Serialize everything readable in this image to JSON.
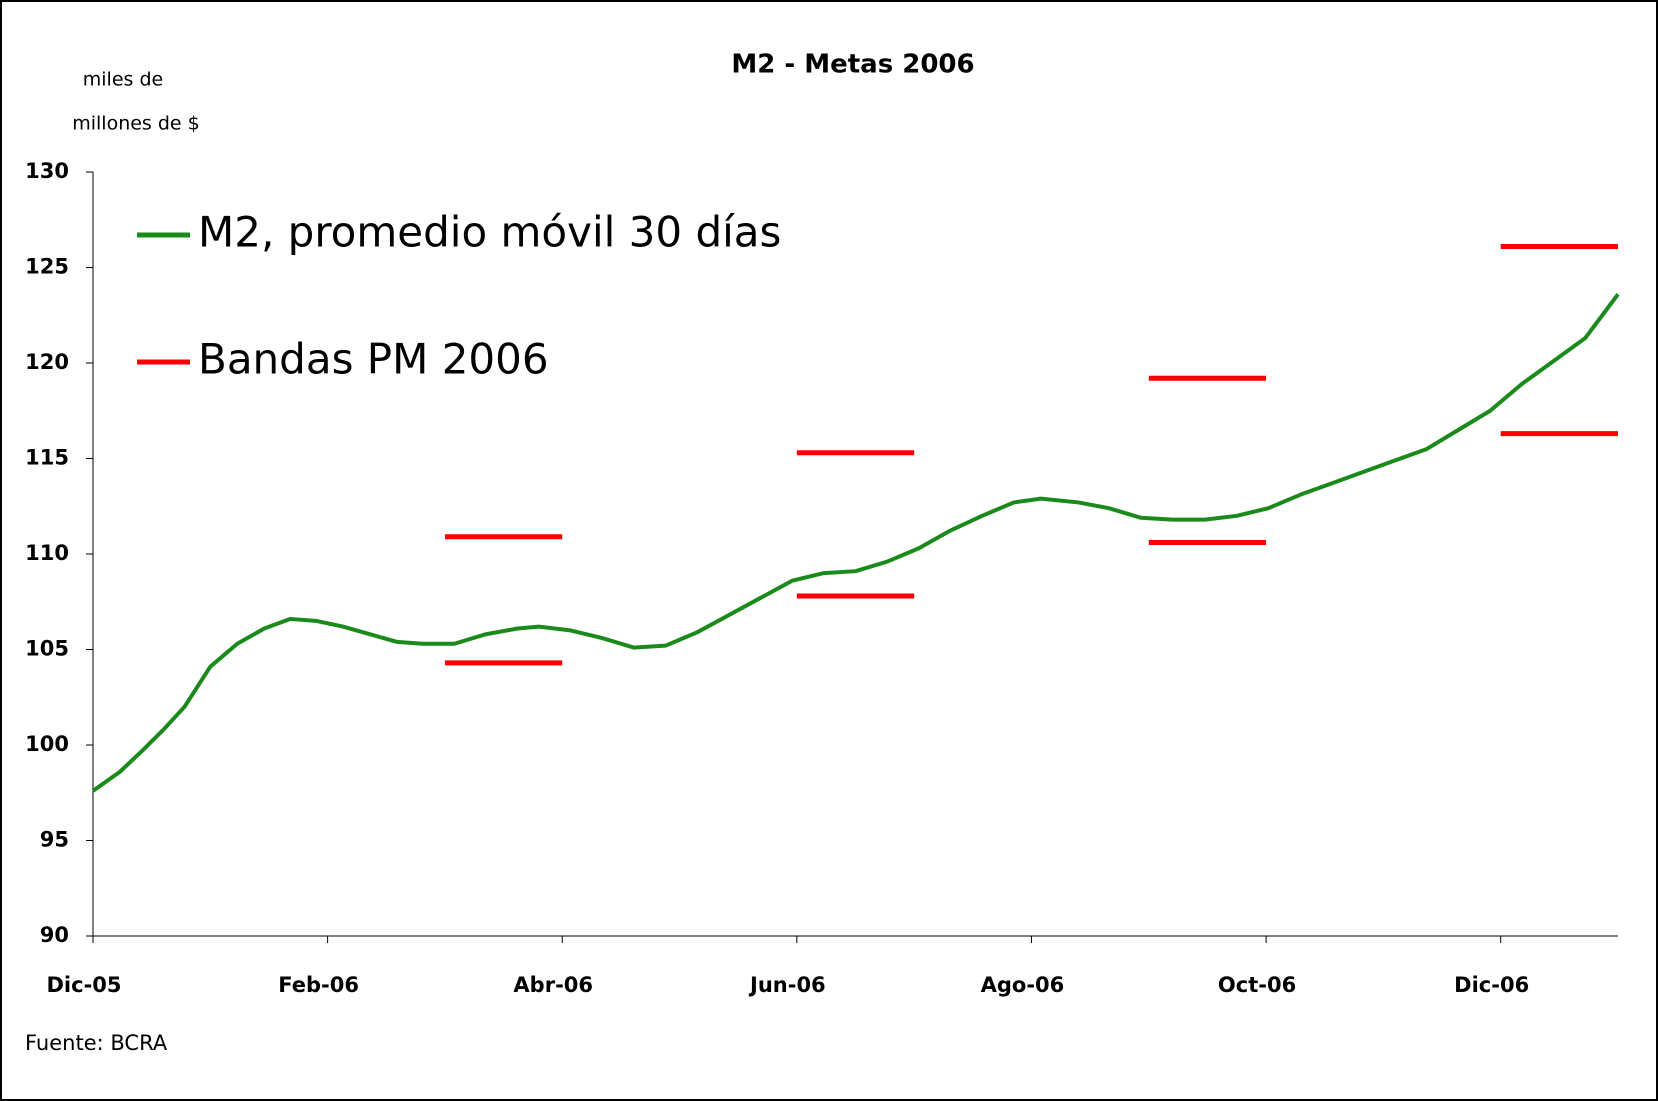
{
  "chart_data": {
    "type": "line",
    "title": "M2 - Metas 2006",
    "y_label": [
      "miles de",
      "millones de $"
    ],
    "source": "Fuente: BCRA",
    "xlim": [
      0,
      13
    ],
    "xticks": [
      {
        "value": 0,
        "label": "Dic-05"
      },
      {
        "value": 2,
        "label": "Feb-06"
      },
      {
        "value": 4,
        "label": "Abr-06"
      },
      {
        "value": 6,
        "label": "Jun-06"
      },
      {
        "value": 8,
        "label": "Ago-06"
      },
      {
        "value": 10,
        "label": "Oct-06"
      },
      {
        "value": 12,
        "label": "Dic-06"
      }
    ],
    "ylim": [
      90,
      130
    ],
    "yticks": [
      90,
      95,
      100,
      105,
      110,
      115,
      120,
      125,
      130
    ],
    "series": [
      {
        "name": "M2, promedio móvil 30 días",
        "color": "#1a8a1a",
        "x": [
          0,
          0.23,
          0.42,
          0.6,
          0.78,
          1.0,
          1.23,
          1.46,
          1.68,
          1.9,
          2.13,
          2.36,
          2.59,
          2.81,
          3.08,
          3.35,
          3.62,
          3.8,
          4.07,
          4.34,
          4.61,
          4.88,
          5.15,
          5.42,
          5.69,
          5.96,
          6.23,
          6.5,
          6.77,
          7.04,
          7.3,
          7.58,
          7.85,
          8.08,
          8.4,
          8.66,
          8.93,
          9.2,
          9.48,
          9.75,
          10.02,
          10.29,
          10.56,
          10.83,
          11.1,
          11.37,
          11.64,
          11.91,
          12.18,
          12.45,
          12.72,
          13
        ],
        "values": [
          97.6,
          98.6,
          99.7,
          100.8,
          102,
          104.1,
          105.3,
          106.1,
          106.6,
          106.5,
          106.2,
          105.8,
          105.4,
          105.3,
          105.3,
          105.8,
          106.1,
          106.2,
          106.0,
          105.6,
          105.1,
          105.2,
          105.9,
          106.8,
          107.7,
          108.6,
          109.0,
          109.1,
          109.6,
          110.3,
          111.2,
          112.0,
          112.7,
          112.9,
          112.7,
          112.4,
          111.9,
          111.8,
          111.8,
          112.0,
          112.4,
          113.1,
          113.7,
          114.3,
          114.9,
          115.5,
          116.5,
          117.5,
          118.9,
          120.1,
          121.3,
          123.6
        ]
      },
      {
        "name": "Bandas PM 2006",
        "color": "#ff0000",
        "segments": [
          {
            "x": [
              3,
              4
            ],
            "lower": 104.3,
            "upper": 110.9
          },
          {
            "x": [
              6,
              7
            ],
            "lower": 107.8,
            "upper": 115.3
          },
          {
            "x": [
              9,
              10
            ],
            "lower": 110.6,
            "upper": 119.2
          },
          {
            "x": [
              12,
              13
            ],
            "lower": 116.3,
            "upper": 126.1
          }
        ]
      }
    ]
  }
}
